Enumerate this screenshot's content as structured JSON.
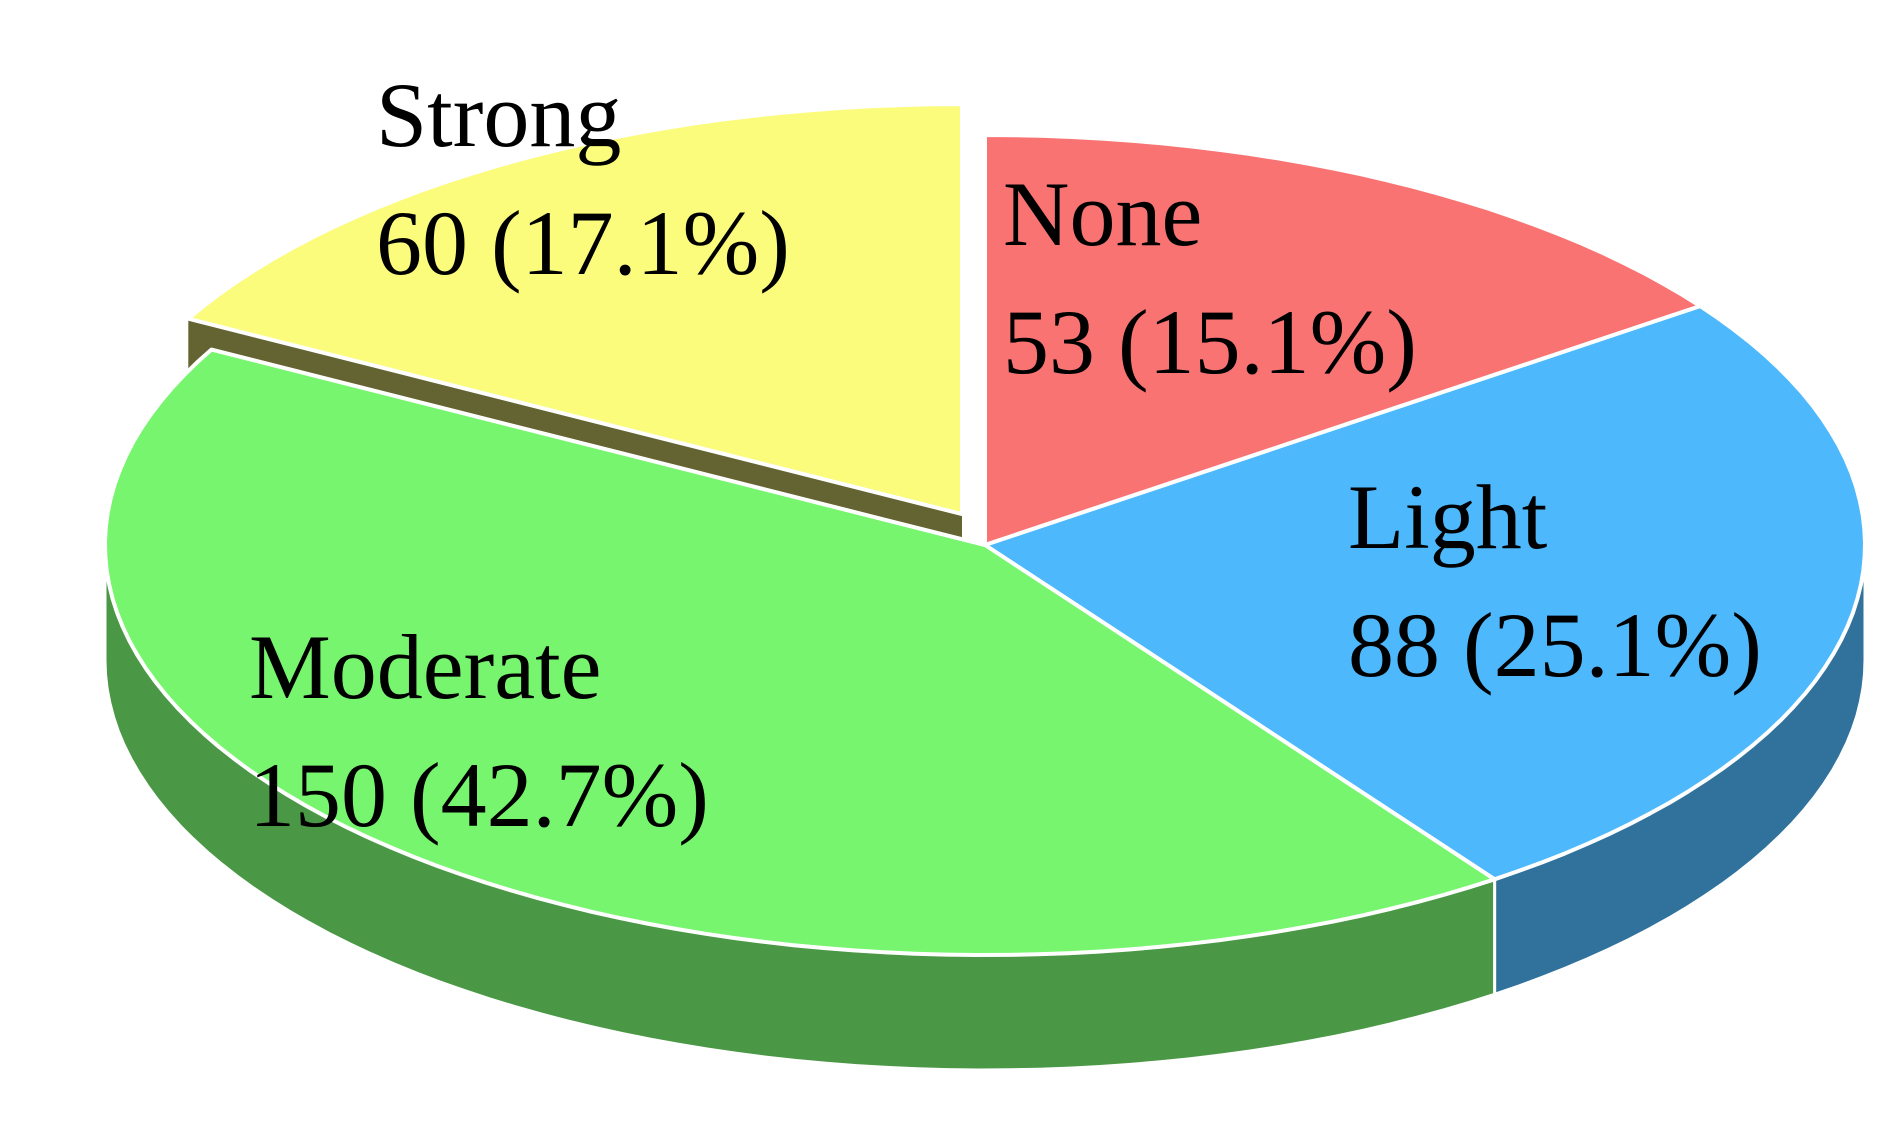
{
  "chart_data": {
    "type": "pie",
    "categories": [
      "None",
      "Light",
      "Moderate",
      "Strong"
    ],
    "values": [
      53,
      88,
      150,
      60
    ],
    "value_labels": [
      "53 (15.1%)",
      "88 (25.1%)",
      "150 (42.7%)",
      "60 (17.1%)"
    ],
    "colors": [
      "#f97373",
      "#4db8fb",
      "#77f56f",
      "#fbfb7c"
    ],
    "explode": [
      0,
      0,
      0,
      1
    ]
  }
}
